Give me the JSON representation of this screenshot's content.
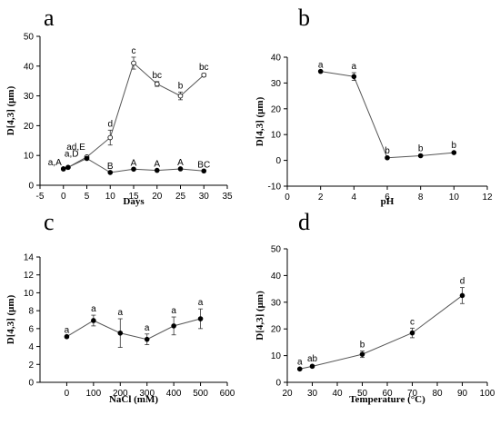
{
  "chart_data": [
    {
      "type": "line",
      "panel_label": "a",
      "xlabel": "Days",
      "ylabel": "D[4,3] (μm)",
      "xlim": [
        -5,
        35
      ],
      "ylim": [
        0,
        50
      ],
      "xticks": [
        -5,
        0,
        5,
        10,
        15,
        20,
        25,
        30,
        35
      ],
      "yticks": [
        0,
        10,
        20,
        30,
        40,
        50
      ],
      "grid": false,
      "legend": "none",
      "series": [
        {
          "marker": "open-circle",
          "x": [
            0,
            1,
            5,
            10,
            15,
            20,
            25,
            30
          ],
          "y": [
            5.5,
            6,
            9.5,
            16,
            41,
            34,
            30,
            37
          ],
          "err": [
            0,
            0,
            0,
            2.5,
            2,
            0.8,
            1.3,
            0.5
          ],
          "labels": [
            "a,A",
            "a,D",
            "ad,E",
            "d",
            "c",
            "bc",
            "b",
            "bc"
          ]
        },
        {
          "marker": "filled-circle",
          "x": [
            0,
            1,
            5,
            10,
            15,
            20,
            25,
            30
          ],
          "y": [
            5.5,
            6,
            9,
            4.3,
            5.4,
            5,
            5.5,
            4.8
          ],
          "err": [
            0,
            0,
            0,
            0,
            0,
            0,
            0,
            0
          ],
          "labels": [
            "",
            "",
            "",
            "B",
            "A",
            "A",
            "A",
            "BC"
          ]
        }
      ]
    },
    {
      "type": "line",
      "panel_label": "b",
      "xlabel": "pH",
      "ylabel": "D[4,3] (μm)",
      "xlim": [
        0,
        12
      ],
      "ylim": [
        -10,
        40
      ],
      "xticks": [
        0,
        2,
        4,
        6,
        8,
        10,
        12
      ],
      "yticks": [
        -10,
        0,
        10,
        20,
        30,
        40
      ],
      "grid": false,
      "legend": "none",
      "series": [
        {
          "marker": "filled-circle",
          "x": [
            2,
            4,
            6,
            8,
            10
          ],
          "y": [
            34.5,
            32.5,
            1,
            1.8,
            3
          ],
          "err": [
            0,
            1.5,
            0.3,
            0.4,
            0.3
          ],
          "labels": [
            "a",
            "a",
            "b",
            "b",
            "b"
          ]
        }
      ]
    },
    {
      "type": "line",
      "panel_label": "c",
      "xlabel": "NaCl (mM)",
      "ylabel": "D[4,3] (μm)",
      "xlim": [
        -100,
        600
      ],
      "ylim": [
        0,
        14
      ],
      "xticks": [
        0,
        100,
        200,
        300,
        400,
        500,
        600
      ],
      "yticks": [
        0,
        2,
        4,
        6,
        8,
        10,
        12,
        14
      ],
      "grid": false,
      "legend": "none",
      "series": [
        {
          "marker": "filled-circle",
          "x": [
            0,
            100,
            200,
            300,
            400,
            500
          ],
          "y": [
            5.1,
            6.9,
            5.5,
            4.8,
            6.3,
            7.1
          ],
          "err": [
            0,
            0.6,
            1.6,
            0.6,
            1.0,
            1.1
          ],
          "labels": [
            "a",
            "a",
            "a",
            "a",
            "a",
            "a"
          ]
        }
      ]
    },
    {
      "type": "line",
      "panel_label": "d",
      "xlabel": "Temperature (°C)",
      "ylabel": "D[4,3] (μm)",
      "xlim": [
        20,
        100
      ],
      "ylim": [
        0,
        50
      ],
      "xticks": [
        20,
        30,
        40,
        50,
        60,
        70,
        80,
        90,
        100
      ],
      "yticks": [
        0,
        10,
        20,
        30,
        40,
        50
      ],
      "grid": false,
      "legend": "none",
      "series": [
        {
          "marker": "filled-circle",
          "x": [
            25,
            30,
            50,
            70,
            90
          ],
          "y": [
            5,
            6,
            10.5,
            18.5,
            32.5
          ],
          "err": [
            0.3,
            0.4,
            1.2,
            1.8,
            3
          ],
          "labels": [
            "a",
            "ab",
            "b",
            "c",
            "d"
          ]
        }
      ]
    }
  ]
}
